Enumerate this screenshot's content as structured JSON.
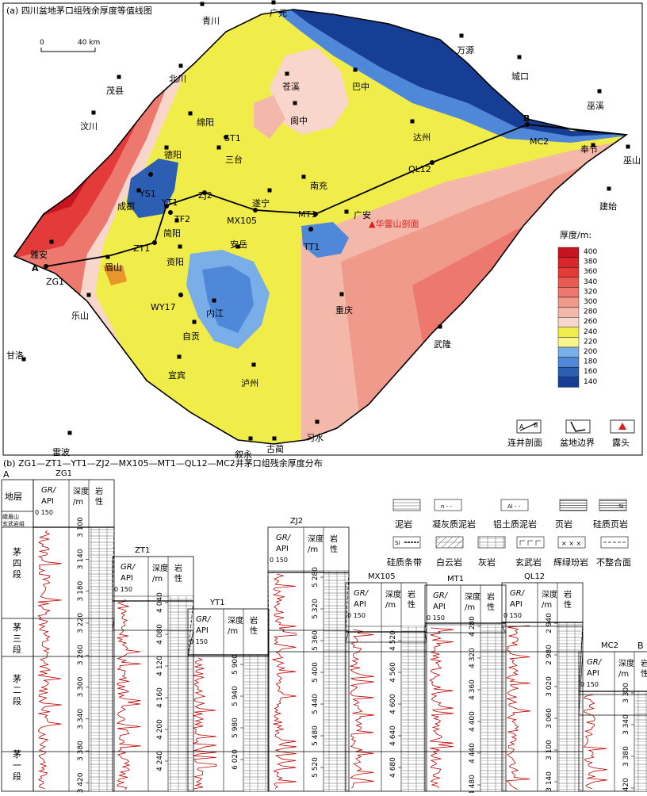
{
  "map": {
    "title": "(a) 四川盆地茅口组残余厚度等值线图",
    "scalebar": {
      "zero": "0",
      "label": "40 km"
    },
    "cities": [
      {
        "name": "青川"
      },
      {
        "name": "广元"
      },
      {
        "name": "万源"
      },
      {
        "name": "城口"
      },
      {
        "name": "茂县"
      },
      {
        "name": "北川"
      },
      {
        "name": "巴中"
      },
      {
        "name": "苍溪"
      },
      {
        "name": "汶川"
      },
      {
        "name": "绵阳"
      },
      {
        "name": "阆中"
      },
      {
        "name": "巫溪"
      },
      {
        "name": "三台"
      },
      {
        "name": "达州"
      },
      {
        "name": "奉节"
      },
      {
        "name": "巫山"
      },
      {
        "name": "德阳"
      },
      {
        "name": "成都"
      },
      {
        "name": "南充"
      },
      {
        "name": "遂宁"
      },
      {
        "name": "简阳"
      },
      {
        "name": "广安"
      },
      {
        "name": "建始"
      },
      {
        "name": "雅安"
      },
      {
        "name": "眉山"
      },
      {
        "name": "资阳"
      },
      {
        "name": "安岳"
      },
      {
        "name": "乐山"
      },
      {
        "name": "内江"
      },
      {
        "name": "重庆"
      },
      {
        "name": "自贡"
      },
      {
        "name": "甘洛"
      },
      {
        "name": "武隆"
      },
      {
        "name": "宜宾"
      },
      {
        "name": "泸州"
      },
      {
        "name": "雷波"
      },
      {
        "name": "叙永"
      },
      {
        "name": "古蔺"
      },
      {
        "name": "习水"
      }
    ],
    "wells": [
      {
        "name": "ST1"
      },
      {
        "name": "YS1"
      },
      {
        "name": "YT1"
      },
      {
        "name": "ZJ2"
      },
      {
        "name": "TF2"
      },
      {
        "name": "MX105"
      },
      {
        "name": "MT1"
      },
      {
        "name": "ZT1"
      },
      {
        "name": "TT1"
      },
      {
        "name": "WY17"
      },
      {
        "name": "QL12"
      },
      {
        "name": "MC2"
      },
      {
        "name": "ZG1"
      }
    ],
    "section_ends": {
      "a": "A",
      "b": "B"
    },
    "outcrop_label": "▲华蓥山剖面",
    "legend": {
      "title": "厚度/m:",
      "levels": [
        "400",
        "380",
        "360",
        "340",
        "320",
        "300",
        "280",
        "260",
        "240",
        "220",
        "200",
        "180",
        "160",
        "140"
      ],
      "colors": [
        "#c8141e",
        "#d8262a",
        "#e23b3a",
        "#e85a52",
        "#ec786e",
        "#f09a8c",
        "#f4b8aa",
        "#f8d6cc",
        "#f0ec4a",
        "#f8f58c",
        "#7aaee8",
        "#4f88d8",
        "#2c5fb4",
        "#163e95"
      ]
    },
    "symbols": {
      "section": "连井剖面",
      "boundary": "盆地边界",
      "outcrop": "露头",
      "mini_a": "A",
      "mini_b": "B"
    }
  },
  "section": {
    "title": "(b) ZG1—ZT1—YT1—ZJ2—MX105—MT1—QL12—MC2井茅口组残余厚度分布",
    "end_a": "A",
    "end_b": "B",
    "strat_header": "地层",
    "formations": [
      "峨眉山玄武岩组",
      "茅四段",
      "茅三段",
      "茅二段",
      "茅一段"
    ],
    "col_gr": "GR/",
    "col_api": "API",
    "col_scale": "0    150",
    "col_depth": "深度/m",
    "col_lith": "岩性",
    "wells": [
      {
        "name": "ZG1",
        "depths": [
          "3 100",
          "3 140",
          "3 180",
          "3 220",
          "3 260",
          "3 300",
          "3 340",
          "3 380",
          "3 420"
        ]
      },
      {
        "name": "ZT1",
        "depths": [
          "4 040",
          "4 080",
          "4 120",
          "4 160",
          "4 200",
          "4 240"
        ]
      },
      {
        "name": "YT1",
        "depths": [
          "5 900",
          "5 940",
          "5 980",
          "6 020"
        ]
      },
      {
        "name": "ZJ2",
        "depths": [
          "5 280",
          "5 320",
          "5 360",
          "5 400",
          "5 440",
          "5 480",
          "5 520"
        ]
      },
      {
        "name": "MX105",
        "depths": [
          "4 520",
          "4 560",
          "4 600",
          "4 640",
          "4 680"
        ]
      },
      {
        "name": "MT1",
        "depths": [
          "4 280",
          "4 320",
          "4 360",
          "4 400",
          "4 440",
          "4 480"
        ]
      },
      {
        "name": "QL12",
        "depths": [
          "2 940",
          "2 980",
          "3 020",
          "3 060",
          "3 100",
          "3 140"
        ]
      },
      {
        "name": "MC2",
        "depths": [
          "3 300",
          "3 340",
          "3 380",
          "3 420"
        ]
      }
    ],
    "lith_legend": [
      "泥岩",
      "凝灰质泥岩",
      "铝土质泥岩",
      "页岩",
      "硅质页岩",
      "硅质条带",
      "白云岩",
      "灰岩",
      "玄武岩",
      "辉绿玢岩",
      "不整合面"
    ],
    "lith_symbols": {
      "tuff": "n - -",
      "al": "Al - -",
      "si": "Si",
      "diabase": "× × ×"
    }
  }
}
